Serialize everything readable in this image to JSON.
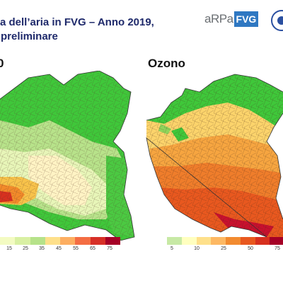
{
  "header": {
    "title_line1": "a dell’aria  in FVG – Anno 2019,",
    "title_line2": "preliminare"
  },
  "logo": {
    "text_a": "aRPa",
    "text_b": "FVG"
  },
  "panels": [
    {
      "title": "0",
      "scale_ticks": [
        "15",
        "25",
        "35",
        "45",
        "55",
        "65",
        "75"
      ],
      "scale_colors": [
        "#f3fbc2",
        "#d9f0a3",
        "#b6e28a",
        "#fee08b",
        "#fdae61",
        "#f46d43",
        "#d73027",
        "#a50026"
      ]
    },
    {
      "title": "Ozono",
      "scale_ticks": [
        "5",
        "10",
        "25",
        "50",
        "75"
      ],
      "scale_colors": [
        "#c7e9a5",
        "#ffffbf",
        "#fee08b",
        "#fdb863",
        "#f28b30",
        "#e8581f",
        "#d7301f",
        "#a50026"
      ]
    }
  ]
}
